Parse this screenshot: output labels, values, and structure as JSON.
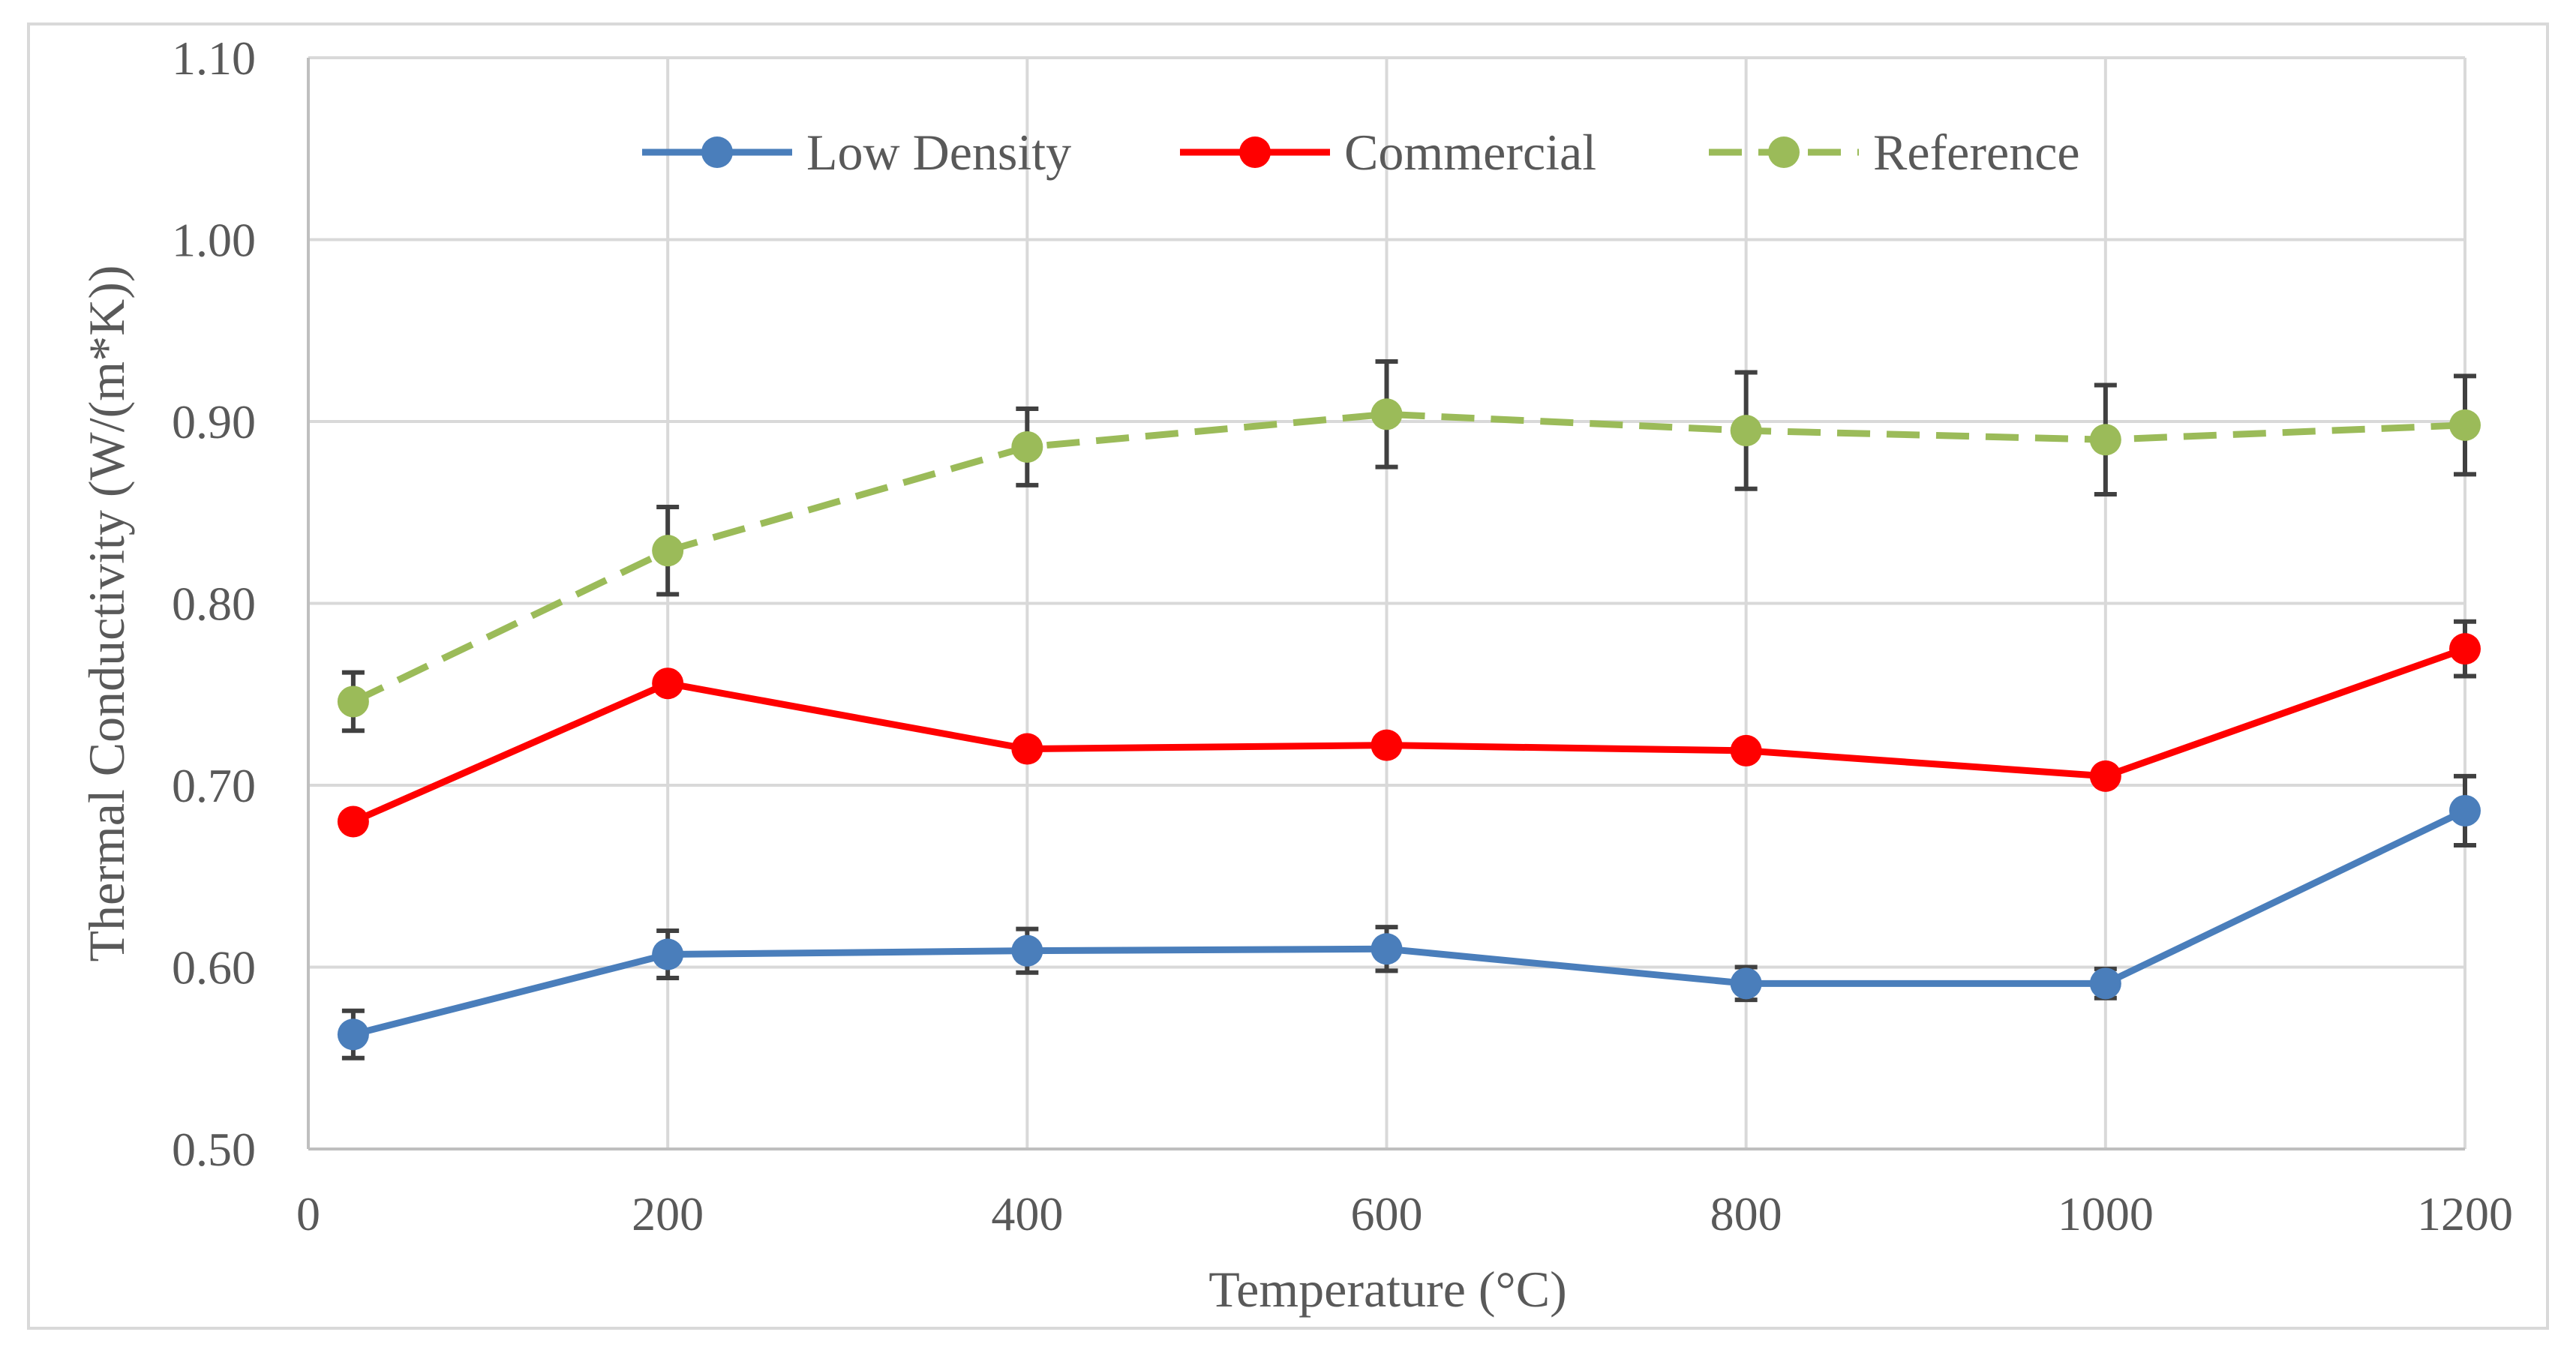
{
  "chart_data": {
    "type": "line",
    "title": "",
    "xlabel": "Temperature (°C)",
    "ylabel": "Thermal Conductivity (W/(m*K))",
    "xlim": [
      0,
      1200
    ],
    "ylim": [
      0.5,
      1.1
    ],
    "xticks": [
      0,
      200,
      400,
      600,
      800,
      1000,
      1200
    ],
    "xtick_labels": [
      "0",
      "200",
      "400",
      "600",
      "800",
      "1000",
      "1200"
    ],
    "yticks": [
      0.5,
      0.6,
      0.7,
      0.8,
      0.9,
      1.0,
      1.1
    ],
    "ytick_labels": [
      "0.50",
      "0.60",
      "0.70",
      "0.80",
      "0.90",
      "1.00",
      "1.10"
    ],
    "grid": true,
    "legend_position": "top-center",
    "series": [
      {
        "name": "Low Density",
        "color": "#4a7ebb",
        "dashed": false,
        "x": [
          25,
          200,
          400,
          600,
          800,
          1000,
          1200
        ],
        "y": [
          0.563,
          0.607,
          0.609,
          0.61,
          0.591,
          0.591,
          0.686
        ],
        "err": [
          0.013,
          0.013,
          0.012,
          0.012,
          0.009,
          0.008,
          0.019
        ]
      },
      {
        "name": "Commercial",
        "color": "#ff0000",
        "dashed": false,
        "x": [
          25,
          200,
          400,
          600,
          800,
          1000,
          1200
        ],
        "y": [
          0.68,
          0.756,
          0.72,
          0.722,
          0.719,
          0.705,
          0.775
        ],
        "err": [
          0.0,
          0.0,
          0.0,
          0.0,
          0.0,
          0.0,
          0.015
        ]
      },
      {
        "name": "Reference",
        "color": "#9bbb59",
        "dashed": true,
        "x": [
          25,
          200,
          400,
          600,
          800,
          1000,
          1200
        ],
        "y": [
          0.746,
          0.829,
          0.886,
          0.904,
          0.895,
          0.89,
          0.898
        ],
        "err": [
          0.016,
          0.024,
          0.021,
          0.029,
          0.032,
          0.03,
          0.027
        ]
      }
    ]
  }
}
